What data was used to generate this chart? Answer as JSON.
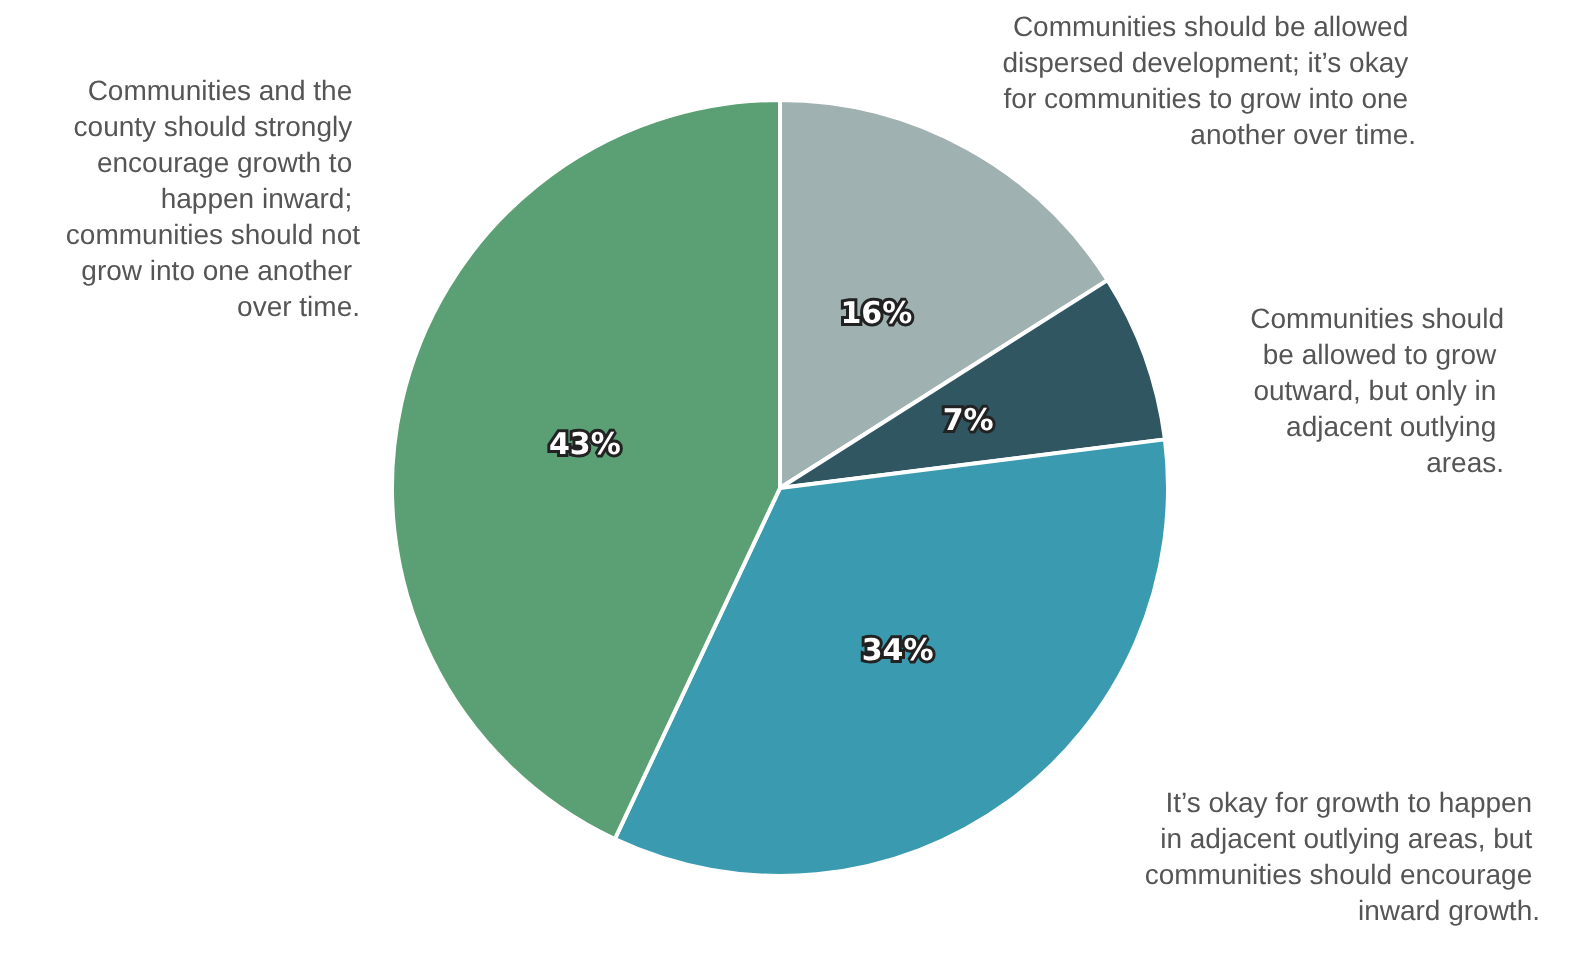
{
  "chart_data": {
    "type": "pie",
    "categories": [
      "Communities should be allowed dispersed development; it’s okay for communities to grow into one another over time.",
      "Communities should be allowed to grow outward, but only in adjacent outlying areas.",
      "It’s okay for growth to happen in adjacent outlying areas, but communities should encourage inward growth.",
      "Communities and the county should strongly encourage growth to happen inward; communities should not grow into one another over time."
    ],
    "values": [
      16,
      7,
      34,
      43
    ],
    "colors": [
      "#9fb1b1",
      "#2f5661",
      "#3a9bb0",
      "#5b9f74"
    ],
    "value_labels": [
      "16%",
      "7%",
      "34%",
      "43%"
    ]
  }
}
